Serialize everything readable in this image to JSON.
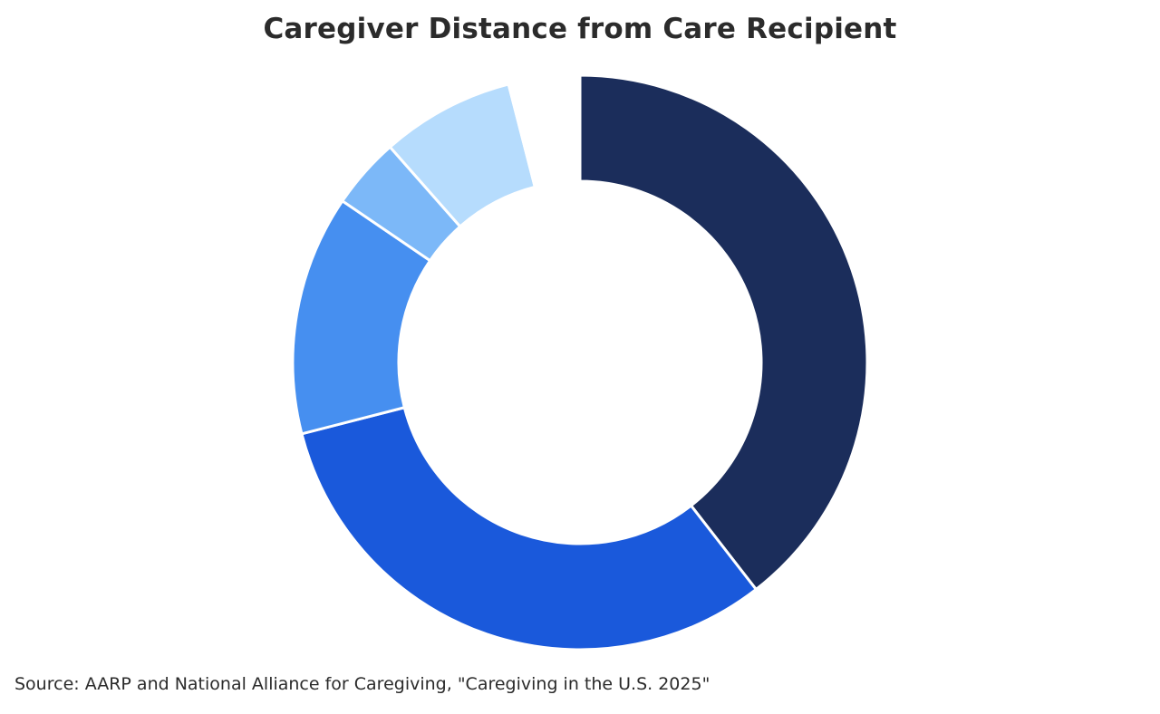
{
  "chart_data": {
    "type": "pie",
    "title": "Caregiver Distance from Care Recipient",
    "donut": true,
    "categories": [
      "",
      "",
      "",
      "",
      "",
      ""
    ],
    "values": [
      39.5,
      31.5,
      13.5,
      4,
      7.5,
      4
    ],
    "colors": [
      "#1b2d5b",
      "#1a59db",
      "#468ff0",
      "#7cb8f8",
      "#b6dcfd",
      "#ffffff"
    ],
    "legend": false
  },
  "source": "Source: AARP and National Alliance for Caregiving, \"Caregiving in the U.S. 2025\""
}
